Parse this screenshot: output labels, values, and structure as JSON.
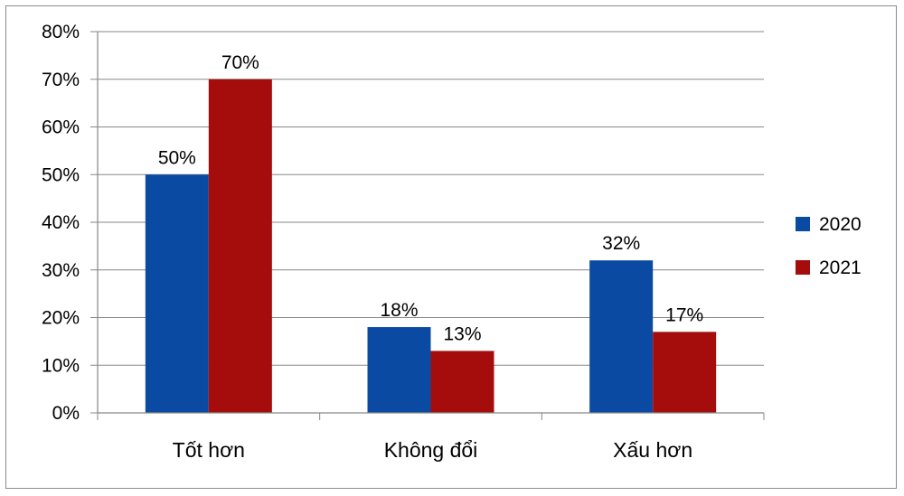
{
  "chart_data": {
    "type": "bar",
    "categories": [
      "Tốt hơn",
      "Không đổi",
      "Xấu hơn"
    ],
    "series": [
      {
        "name": "2020",
        "values": [
          50,
          18,
          32
        ],
        "labels": [
          "50%",
          "18%",
          "32%"
        ],
        "color": "#0b4aa2"
      },
      {
        "name": "2021",
        "values": [
          70,
          13,
          17
        ],
        "labels": [
          "70%",
          "13%",
          "17%"
        ],
        "color": "#a50d0d"
      }
    ],
    "y_ticks": [
      {
        "value": 0,
        "label": "0%"
      },
      {
        "value": 10,
        "label": "10%"
      },
      {
        "value": 20,
        "label": "20%"
      },
      {
        "value": 30,
        "label": "30%"
      },
      {
        "value": 40,
        "label": "40%"
      },
      {
        "value": 50,
        "label": "50%"
      },
      {
        "value": 60,
        "label": "60%"
      },
      {
        "value": 70,
        "label": "70%"
      },
      {
        "value": 80,
        "label": "80%"
      }
    ],
    "ylim": [
      0,
      80
    ],
    "grid": true,
    "legend": "right",
    "title": "",
    "xlabel": "",
    "ylabel": ""
  }
}
